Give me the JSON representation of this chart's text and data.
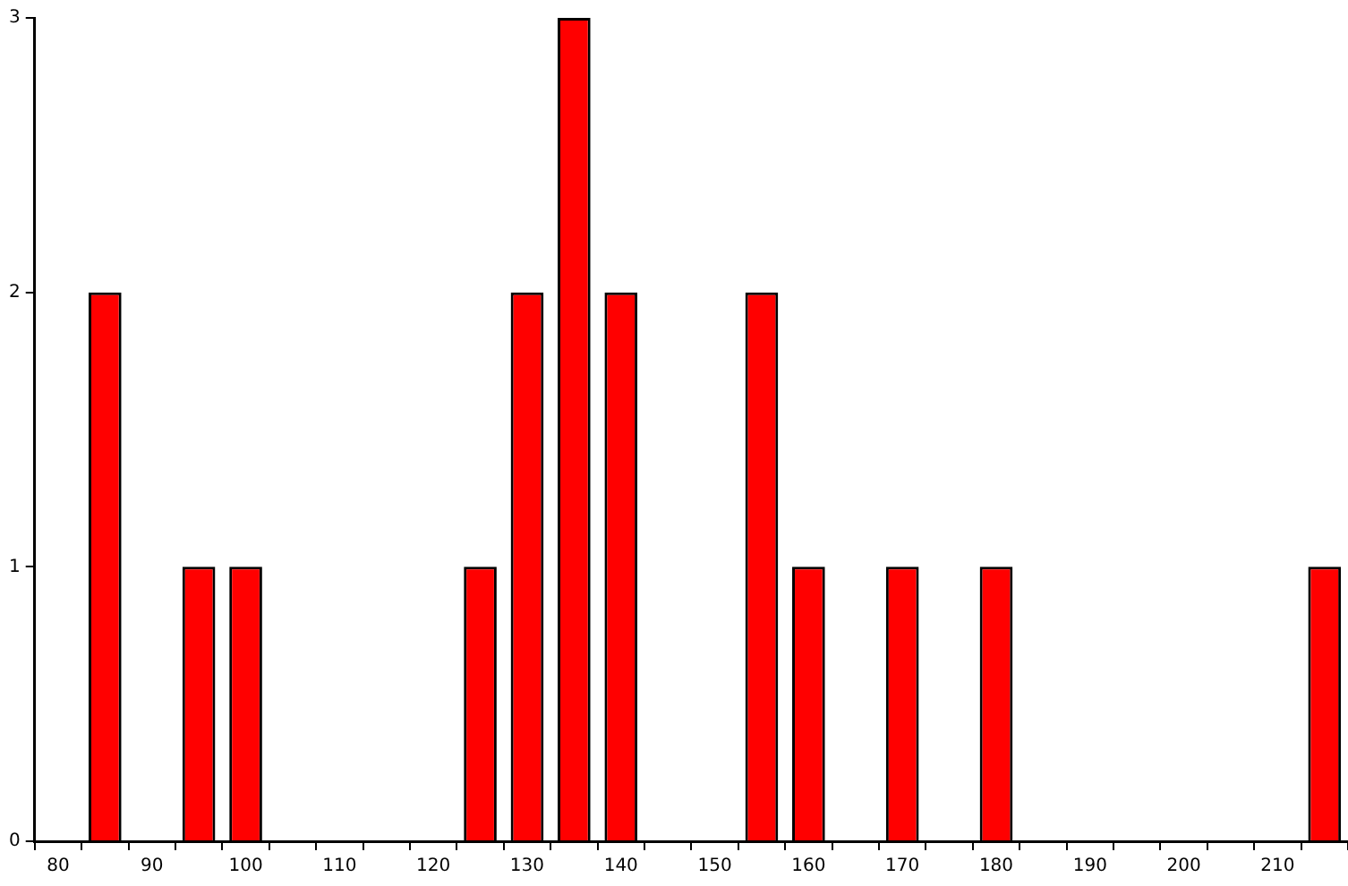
{
  "chart_data": {
    "type": "bar",
    "categories": [
      "80",
      null,
      "90",
      null,
      "100",
      null,
      "110",
      null,
      "120",
      null,
      "130",
      null,
      "140",
      null,
      "150",
      null,
      "160",
      null,
      "170",
      null,
      "180",
      null,
      "190",
      null,
      "200",
      null,
      "210",
      null
    ],
    "values": [
      0,
      2,
      0,
      1,
      1,
      0,
      0,
      0,
      0,
      1,
      2,
      3,
      2,
      0,
      0,
      2,
      1,
      0,
      1,
      0,
      1,
      0,
      0,
      0,
      0,
      0,
      0,
      1
    ],
    "color": "#ff0000",
    "ylim": [
      0,
      3
    ],
    "yticks": [
      0,
      1,
      2,
      3
    ],
    "grid": false
  }
}
